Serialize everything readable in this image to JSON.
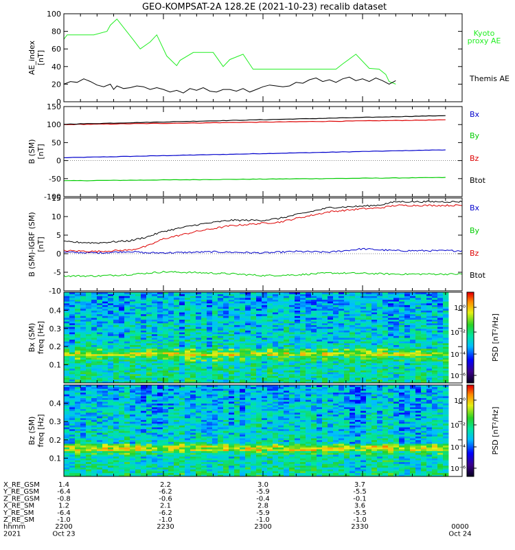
{
  "title": "GEO-KOMPSAT-2A 128.2E (2021-10-23) recalib dataset",
  "colors": {
    "black": "#000000",
    "red": "#dd0000",
    "blue": "#0000cc",
    "green": "#00cc00",
    "lime": "#22ee22"
  },
  "chart_data": [
    {
      "type": "line",
      "panel": "AE index",
      "ylabel": "AE_index",
      "yunit": "[nT]",
      "ylim": [
        0,
        100
      ],
      "yticks": [
        "0",
        "20",
        "40",
        "60",
        "80",
        "100"
      ],
      "x_time": [
        "2200",
        "2215",
        "2230",
        "2245",
        "2300",
        "2315",
        "2330",
        "2345",
        "0000"
      ],
      "series": [
        {
          "name": "Kyoto proxy AE",
          "color": "#22ee22",
          "label_lines": [
            "Kyoto",
            "proxy AE"
          ],
          "x": [
            "2200",
            "2201",
            "2209",
            "2213",
            "2214",
            "2216",
            "2221",
            "2223",
            "2226",
            "2228",
            "2231",
            "2234",
            "2235",
            "2239",
            "2245",
            "2248",
            "2250",
            "2254",
            "2257",
            "2302",
            "2303",
            "2322",
            "2324",
            "2328",
            "2332",
            "2335",
            "2337",
            "2338",
            "2340"
          ],
          "values": [
            71,
            76,
            76,
            80,
            87,
            94,
            70,
            60,
            68,
            76,
            52,
            41,
            47,
            56,
            56,
            40,
            48,
            54,
            37,
            37,
            37,
            37,
            43,
            54,
            38,
            37,
            31,
            23,
            20
          ]
        },
        {
          "name": "Themis AE",
          "color": "#000000",
          "label_lines": [
            "Themis AE"
          ],
          "x": [
            "2200",
            "2202",
            "2204",
            "2206",
            "2208",
            "2210",
            "2212",
            "2214",
            "2215",
            "2216",
            "2218",
            "2220",
            "2222",
            "2224",
            "2226",
            "2228",
            "2230",
            "2232",
            "2234",
            "2236",
            "2238",
            "2240",
            "2242",
            "2244",
            "2246",
            "2248",
            "2250",
            "2252",
            "2254",
            "2256",
            "2258",
            "2300",
            "2302",
            "2304",
            "2306",
            "2308",
            "2310",
            "2312",
            "2314",
            "2316",
            "2318",
            "2320",
            "2322",
            "2324",
            "2326",
            "2328",
            "2330",
            "2332",
            "2334",
            "2336",
            "2338",
            "2340"
          ],
          "values": [
            20,
            23,
            22,
            26,
            23,
            19,
            17,
            20,
            14,
            18,
            15,
            16,
            18,
            17,
            14,
            16,
            14,
            11,
            13,
            10,
            15,
            13,
            16,
            12,
            11,
            14,
            14,
            12,
            15,
            11,
            14,
            17,
            19,
            18,
            17,
            18,
            22,
            21,
            25,
            27,
            23,
            25,
            22,
            26,
            28,
            24,
            26,
            23,
            27,
            24,
            20,
            24
          ]
        }
      ]
    },
    {
      "type": "line",
      "panel": "B (SM)",
      "ylabel": "B (SM)",
      "yunit": "[nT]",
      "ylim": [
        -100,
        150
      ],
      "yticks": [
        "-100",
        "-50",
        "0",
        "50",
        "100",
        "150"
      ],
      "series": [
        {
          "name": "Bx",
          "color": "#0000cc",
          "start": 8,
          "end": 30
        },
        {
          "name": "By",
          "color": "#00cc00",
          "start": -56,
          "end": -47
        },
        {
          "name": "Bz",
          "color": "#dd0000",
          "start": 100,
          "end": 113
        },
        {
          "name": "Btot",
          "color": "#000000",
          "start": 101,
          "end": 125
        }
      ]
    },
    {
      "type": "line",
      "panel": "B (SM)-IGRF (SM)",
      "ylabel": "B (SM)-IGRF (SM)",
      "yunit": "[nT]",
      "ylim": [
        -10,
        15
      ],
      "yticks": [
        "-10",
        "-5",
        "0",
        "5",
        "10",
        "15"
      ],
      "series": [
        {
          "name": "Bx",
          "color": "#0000cc",
          "x": [
            "2200",
            "2210",
            "2220",
            "2225",
            "2235",
            "2245",
            "2300",
            "2310",
            "2320",
            "2330",
            "2340"
          ],
          "values": [
            0.4,
            0.2,
            0.6,
            0.2,
            0.3,
            0.5,
            0.2,
            0.6,
            0.4,
            1.3,
            0.8
          ]
        },
        {
          "name": "By",
          "color": "#00cc00",
          "x": [
            "2200",
            "2210",
            "2220",
            "2230",
            "2240",
            "2250",
            "2300",
            "2310",
            "2320",
            "2330",
            "2340"
          ],
          "values": [
            -6.0,
            -6.0,
            -5.6,
            -4.9,
            -5.1,
            -5.4,
            -5.9,
            -5.7,
            -5.2,
            -5.3,
            -5.5
          ]
        },
        {
          "name": "Bz",
          "color": "#dd0000",
          "x": [
            "2200",
            "2210",
            "2220",
            "2225",
            "2230",
            "2240",
            "2250",
            "2300",
            "2305",
            "2310",
            "2320",
            "2330",
            "2335",
            "2340"
          ],
          "values": [
            0.8,
            0.6,
            1.0,
            2.0,
            4.0,
            6.0,
            7.5,
            8.2,
            8.5,
            9.5,
            11.3,
            12.1,
            12.3,
            13.0
          ]
        },
        {
          "name": "Btot",
          "color": "#000000",
          "x": [
            "2200",
            "2210",
            "2220",
            "2225",
            "2230",
            "2240",
            "2250",
            "2300",
            "2305",
            "2310",
            "2320",
            "2330",
            "2335",
            "2340"
          ],
          "values": [
            3.2,
            2.9,
            3.5,
            4.5,
            6.0,
            7.8,
            9.0,
            9.0,
            9.5,
            10.5,
            12.4,
            12.8,
            13.1,
            14.0
          ]
        }
      ]
    },
    {
      "type": "heatmap",
      "panel": "Bx (SM) dynamic spectrum",
      "ylabel": "Bx (SM)",
      "yunit": "freq [Hz]",
      "ylim": [
        0,
        0.5
      ],
      "yticks": [
        "0.1",
        "0.2",
        "0.3",
        "0.4"
      ],
      "colorbar": {
        "label": "PSD [nT²/Hz]",
        "ticks": [
          "10⁰",
          "10⁻²",
          "10⁻⁴",
          "10⁻⁶"
        ]
      }
    },
    {
      "type": "heatmap",
      "panel": "Bz (SM) dynamic spectrum",
      "ylabel": "Bz (SM)",
      "yunit": "freq [Hz]",
      "ylim": [
        0,
        0.5
      ],
      "yticks": [
        "0.1",
        "0.2",
        "0.3",
        "0.4"
      ],
      "colorbar": {
        "label": "PSD [nT²/Hz]",
        "ticks": [
          "10⁰",
          "10⁻²",
          "10⁻⁴",
          "10⁻⁶"
        ]
      }
    }
  ],
  "ephemeris": {
    "rows": [
      {
        "name": "X_RE_GSM",
        "values": [
          "1.4",
          "2.2",
          "3.0",
          "3.7"
        ]
      },
      {
        "name": "Y_RE_GSM",
        "values": [
          "-6.4",
          "-6.2",
          "-5.9",
          "-5.5"
        ]
      },
      {
        "name": "Z_RE_GSM",
        "values": [
          "-0.8",
          "-0.6",
          "-0.4",
          "-0.1"
        ]
      },
      {
        "name": "X_RE_SM",
        "values": [
          "1.2",
          "2.1",
          "2.8",
          "3.6"
        ]
      },
      {
        "name": "Y_RE_SM",
        "values": [
          "-6.4",
          "-6.2",
          "-5.9",
          "-5.5"
        ]
      },
      {
        "name": "Z_RE_SM",
        "values": [
          "-1.0",
          "-1.0",
          "-1.0",
          "-1.0"
        ]
      }
    ],
    "hhmm": {
      "name": "hhmm",
      "values": [
        "2200",
        "2230",
        "2300",
        "2330",
        "0000"
      ]
    },
    "date_row": {
      "name": "2021",
      "values": [
        "Oct 23",
        "Oct 24"
      ]
    }
  }
}
